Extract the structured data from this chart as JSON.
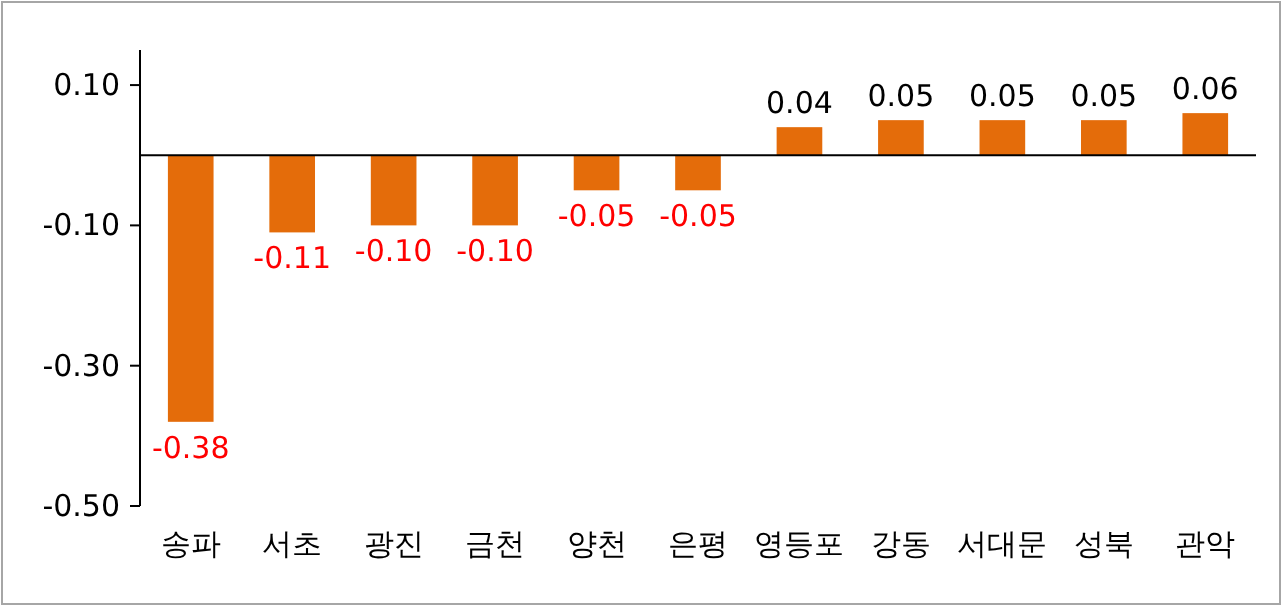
{
  "chart_data": {
    "type": "bar",
    "categories": [
      "송파",
      "서초",
      "광진",
      "금천",
      "양천",
      "은평",
      "영등포",
      "강동",
      "서대문",
      "성북",
      "관악"
    ],
    "values": [
      -0.38,
      -0.11,
      -0.1,
      -0.1,
      -0.05,
      -0.05,
      0.04,
      0.05,
      0.05,
      0.05,
      0.06
    ],
    "value_labels": [
      "-0.38",
      "-0.11",
      "-0.10",
      "-0.10",
      "-0.05",
      "-0.05",
      "0.04",
      "0.05",
      "0.05",
      "0.05",
      "0.06"
    ],
    "color": "#e46c0a",
    "ylim": [
      -0.5,
      0.15
    ],
    "yticks": [
      {
        "value": 0.1,
        "label": "0.10"
      },
      {
        "value": -0.1,
        "label": "-0.10"
      },
      {
        "value": -0.3,
        "label": "-0.30"
      },
      {
        "value": -0.5,
        "label": "-0.50"
      }
    ],
    "grid": false
  }
}
